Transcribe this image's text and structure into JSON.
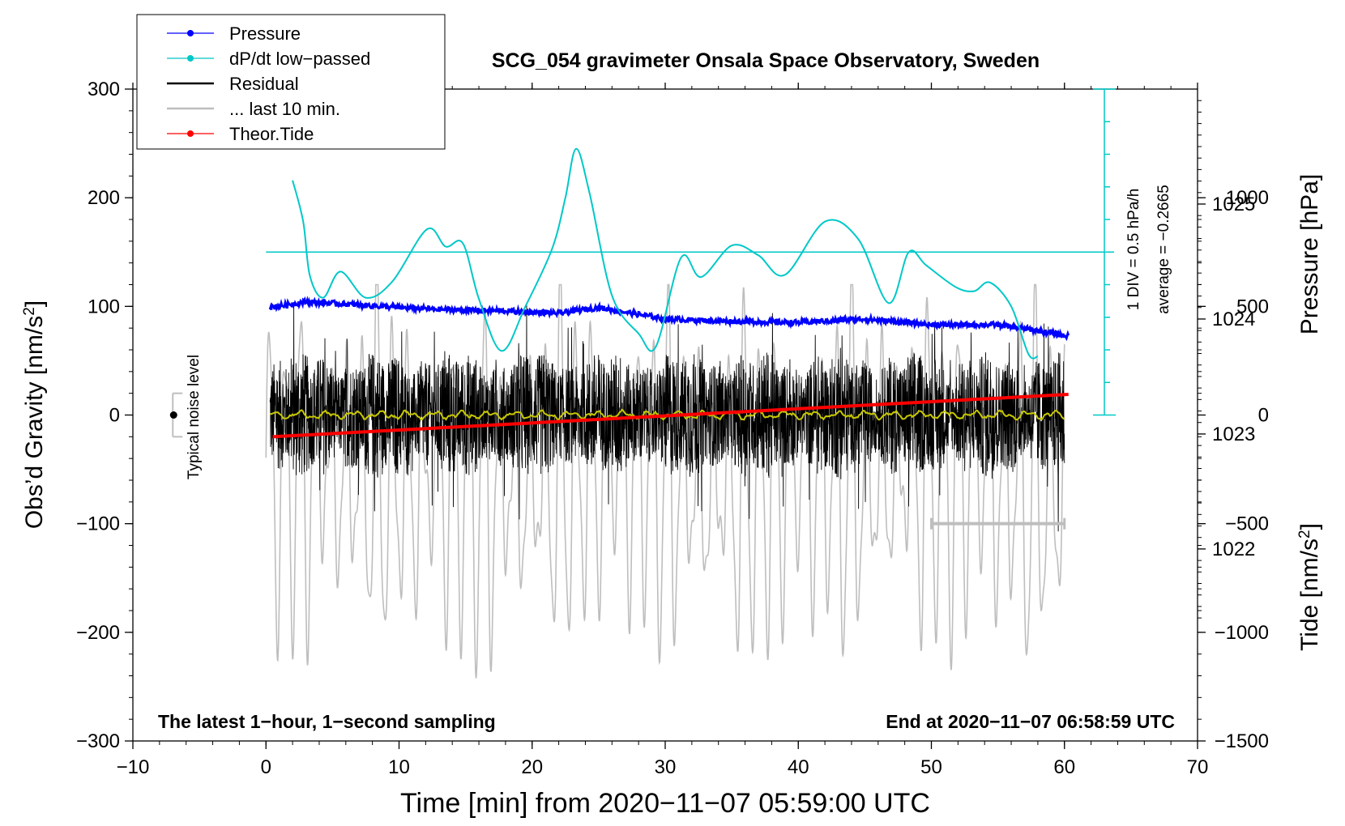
{
  "chart_data": {
    "type": "line",
    "title": "SCG_054 gravimeter Onsala Space Observatory, Sweden",
    "xlabel": "Time [min] from 2020−11−07 05:59:00 UTC",
    "ylabel": "Obs’d Gravity [nm/s²]",
    "ylabel_prefix": "Obs’d Gravity [nm/s",
    "ylabel_sup": "2",
    "ylabel_suffix": "]",
    "right_label_pressure": "Pressure [hPa]",
    "right_label_tide_prefix": "Tide [nm/s",
    "right_label_tide_sup": "2",
    "right_label_tide_suffix": "]",
    "xlim": [
      -10,
      70
    ],
    "ylim": [
      -300,
      300
    ],
    "pressure_lim": [
      1020.33,
      1026.0
    ],
    "tide_lim": [
      -1500,
      1500
    ],
    "x_ticks": [
      {
        "v": -10,
        "label": "−10"
      },
      {
        "v": 0,
        "label": "0"
      },
      {
        "v": 10,
        "label": "10"
      },
      {
        "v": 20,
        "label": "20"
      },
      {
        "v": 30,
        "label": "30"
      },
      {
        "v": 40,
        "label": "40"
      },
      {
        "v": 50,
        "label": "50"
      },
      {
        "v": 60,
        "label": "60"
      },
      {
        "v": 70,
        "label": "70"
      }
    ],
    "y_ticks": [
      {
        "v": 300,
        "label": "300"
      },
      {
        "v": 200,
        "label": "200"
      },
      {
        "v": 100,
        "label": "100"
      },
      {
        "v": 0,
        "label": "0"
      },
      {
        "v": -100,
        "label": "−100"
      },
      {
        "v": -200,
        "label": "−200"
      },
      {
        "v": -300,
        "label": "−300"
      }
    ],
    "pressure_ticks": [
      {
        "v": 1025,
        "label": "1025"
      },
      {
        "v": 1024,
        "label": "1024"
      },
      {
        "v": 1023,
        "label": "1023"
      },
      {
        "v": 1022,
        "label": "1022"
      }
    ],
    "tide_ticks": [
      {
        "v": 1000,
        "label": "1000"
      },
      {
        "v": 500,
        "label": "500"
      },
      {
        "v": 0,
        "label": "0"
      },
      {
        "v": -500,
        "label": "−500"
      },
      {
        "v": -1000,
        "label": "−1000"
      },
      {
        "v": -1500,
        "label": "−1500"
      }
    ],
    "legend": [
      {
        "name": "Pressure",
        "color": "#0000ff",
        "marker": true
      },
      {
        "name": "dP/dt low−passed",
        "color": "#00c8c8",
        "marker": true
      },
      {
        "name": "Residual",
        "color": "#000000",
        "marker": false
      },
      {
        "name": "... last 10 min.",
        "color": "#bebebe",
        "marker": false
      },
      {
        "name": "Theor.Tide",
        "color": "#ff0000",
        "marker": true
      }
    ],
    "legend_position": "top-left",
    "annotations": {
      "bottom_left": "The latest 1−hour, 1−second sampling",
      "bottom_right": "End at 2020−11−07 06:58:59 UTC",
      "noise_label": "Typical noise level",
      "dpdt_scale": "1 DIV = 0.5 hPa/h",
      "dpdt_average": "average = −0.2665"
    },
    "dpdt_scale_bar": {
      "x": 63,
      "y_from": 0,
      "y_to": 300,
      "divisions": 10,
      "reference_level": 150
    },
    "noise_bar": {
      "x": -7,
      "center": 0,
      "half_range": 20
    },
    "last10_bar": {
      "x_from": 50,
      "x_to": 60,
      "y": -100
    },
    "series": [
      {
        "name": "Pressure",
        "axis": "pressure",
        "color": "#0000ff",
        "x": [
          0.3,
          3,
          6,
          10,
          14,
          18,
          22,
          25,
          30,
          35,
          40,
          45,
          50,
          55,
          58,
          60.3
        ],
        "values": [
          1024.1,
          1024.15,
          1024.13,
          1024.1,
          1024.08,
          1024.07,
          1024.05,
          1024.1,
          1024.0,
          1023.98,
          1023.97,
          1024.0,
          1023.95,
          1023.95,
          1023.9,
          1023.85
        ]
      },
      {
        "name": "dP/dt low−passed",
        "axis": "gravity",
        "color": "#00c8c8",
        "x": [
          2,
          2.8,
          3.3,
          4.3,
          5.6,
          7.5,
          9.5,
          12.1,
          13.5,
          14.8,
          16,
          17.7,
          19.5,
          21.5,
          22.5,
          23.3,
          24.3,
          26,
          28,
          29.3,
          31.2,
          32.7,
          35,
          37,
          39,
          42,
          44.5,
          46.8,
          48.3,
          49.6,
          51.8,
          53.2,
          54.4,
          56,
          57.3,
          58
        ],
        "values": [
          216,
          178,
          128,
          108,
          132,
          108,
          123,
          171,
          155,
          158,
          107,
          59,
          100,
          153,
          200,
          245,
          205,
          110,
          75,
          63,
          145,
          127,
          156,
          147,
          129,
          178,
          162,
          103,
          150,
          138,
          118,
          114,
          122,
          100,
          56,
          54
        ]
      },
      {
        "name": "Residual",
        "axis": "gravity",
        "color": "#000000",
        "x_range": [
          0.3,
          60
        ],
        "approx_envelope": [
          -100,
          110
        ]
      },
      {
        "name": "Residual smoothed",
        "axis": "gravity",
        "color": "#c8c800",
        "x_range": [
          0.3,
          60
        ],
        "approx_values": [
          -4,
          4
        ]
      },
      {
        "name": "... last 10 min.",
        "axis": "tide",
        "color": "#bebebe",
        "x_range": [
          0,
          60
        ],
        "approx_envelope": [
          -1250,
          500
        ]
      },
      {
        "name": "Theor.Tide",
        "axis": "tide",
        "color": "#ff0000",
        "x": [
          0.5,
          60.3
        ],
        "values": [
          -100,
          95
        ]
      }
    ]
  }
}
